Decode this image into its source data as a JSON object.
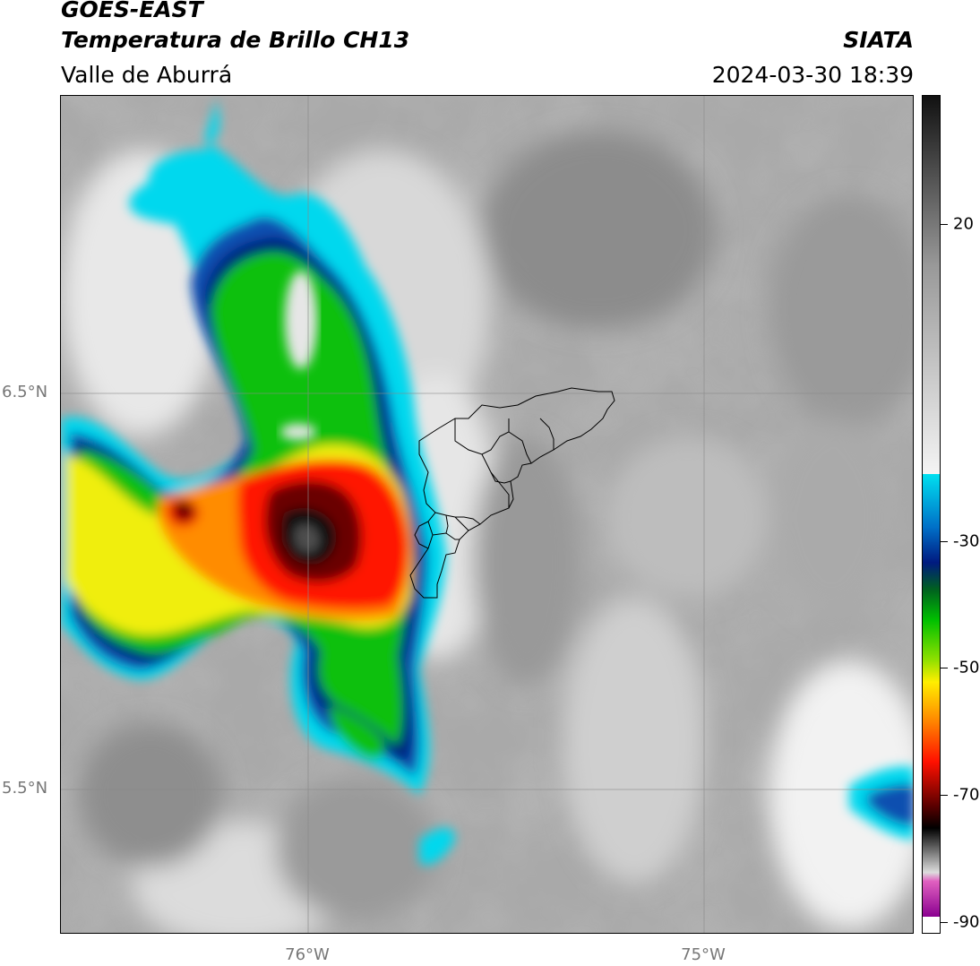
{
  "header": {
    "satellite": "GOES-EAST",
    "product": "Temperatura de Brillo CH13",
    "region": "Valle de Aburrá",
    "brand": "SIATA",
    "datetime": "2024-03-30 18:39"
  },
  "map": {
    "lat_labels": [
      "6.5°N",
      "5.5°N"
    ],
    "lon_labels": [
      "76°W",
      "75°W"
    ],
    "gridlines": true
  },
  "colorbar": {
    "tick_labels": [
      "20",
      "-30",
      "-50",
      "-70",
      "-90"
    ],
    "colors": {
      "warm_gray_top": "#1a1a1a",
      "light_gray": "#f0f0f0",
      "cyan": "#00e0f0",
      "blue": "#0055b0",
      "dark_blue": "#001a80",
      "green": "#00c000",
      "yellow": "#ffee00",
      "orange": "#ff9000",
      "red": "#ff1000",
      "dark_red": "#5a0000",
      "black": "#000000",
      "pink": "#e060c0",
      "purple": "#9010a0"
    }
  }
}
